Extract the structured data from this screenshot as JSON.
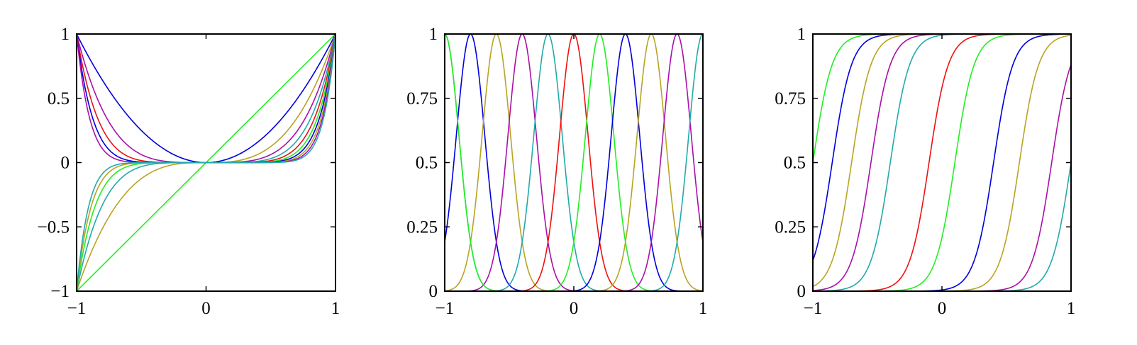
{
  "chart_data": [
    {
      "type": "line",
      "title": "",
      "xlabel": "",
      "ylabel": "",
      "xlim": [
        -1,
        1
      ],
      "ylim": [
        -1,
        1
      ],
      "x_ticks": [
        {
          "value": -1,
          "label": "−1"
        },
        {
          "value": 0,
          "label": "0"
        },
        {
          "value": 1,
          "label": "1"
        }
      ],
      "y_ticks": [
        {
          "value": -1,
          "label": "−1"
        },
        {
          "value": -0.5,
          "label": "−0.5"
        },
        {
          "value": 0,
          "label": "0"
        },
        {
          "value": 0.5,
          "label": "0.5"
        },
        {
          "value": 1,
          "label": "1"
        }
      ],
      "grid": false,
      "series": [
        {
          "family": "power",
          "exponent": 1,
          "color": "#22ee22"
        },
        {
          "family": "power",
          "exponent": 2,
          "color": "#0000dd"
        },
        {
          "family": "power",
          "exponent": 3,
          "color": "#b8a422"
        },
        {
          "family": "power",
          "exponent": 4,
          "color": "#aa10aa"
        },
        {
          "family": "power",
          "exponent": 5,
          "color": "#22aaaa"
        },
        {
          "family": "power",
          "exponent": 6,
          "color": "#ee1111"
        },
        {
          "family": "power",
          "exponent": 7,
          "color": "#22ee22"
        },
        {
          "family": "power",
          "exponent": 8,
          "color": "#0000dd"
        },
        {
          "family": "power",
          "exponent": 9,
          "color": "#b8a422"
        },
        {
          "family": "power",
          "exponent": 10,
          "color": "#aa10aa"
        },
        {
          "family": "power",
          "exponent": 11,
          "color": "#22aaaa"
        }
      ]
    },
    {
      "type": "line",
      "title": "",
      "xlabel": "",
      "ylabel": "",
      "xlim": [
        -1,
        1
      ],
      "ylim": [
        0,
        1
      ],
      "x_ticks": [
        {
          "value": -1,
          "label": "−1"
        },
        {
          "value": 0,
          "label": "0"
        },
        {
          "value": 1,
          "label": "1"
        }
      ],
      "y_ticks": [
        {
          "value": 0,
          "label": "0"
        },
        {
          "value": 0.25,
          "label": "0.25"
        },
        {
          "value": 0.5,
          "label": "0.5"
        },
        {
          "value": 0.75,
          "label": "0.75"
        },
        {
          "value": 1,
          "label": "1"
        }
      ],
      "grid": false,
      "series": [
        {
          "family": "gaussian",
          "center": -1.0,
          "width": 0.11,
          "color": "#22aaaa"
        },
        {
          "family": "gaussian",
          "center": -0.8,
          "width": 0.11,
          "color": "#0000dd"
        },
        {
          "family": "gaussian",
          "center": -0.6,
          "width": 0.11,
          "color": "#b8a422"
        },
        {
          "family": "gaussian",
          "center": -0.4,
          "width": 0.11,
          "color": "#aa10aa"
        },
        {
          "family": "gaussian",
          "center": -0.2,
          "width": 0.11,
          "color": "#22aaaa"
        },
        {
          "family": "gaussian",
          "center": 0.0,
          "width": 0.11,
          "color": "#ee1111"
        },
        {
          "family": "gaussian",
          "center": 0.2,
          "width": 0.11,
          "color": "#22ee22"
        },
        {
          "family": "gaussian",
          "center": 0.4,
          "width": 0.11,
          "color": "#0000dd"
        },
        {
          "family": "gaussian",
          "center": 0.6,
          "width": 0.11,
          "color": "#b8a422"
        },
        {
          "family": "gaussian",
          "center": 0.8,
          "width": 0.11,
          "color": "#aa10aa"
        },
        {
          "family": "gaussian",
          "center": 1.0,
          "width": 0.11,
          "color": "#22aaaa"
        },
        {
          "family": "gaussian",
          "center": -1.0,
          "width": 0.11,
          "color": "#22ee22"
        }
      ]
    },
    {
      "type": "line",
      "title": "",
      "xlabel": "",
      "ylabel": "",
      "xlim": [
        -1,
        1
      ],
      "ylim": [
        0,
        1
      ],
      "x_ticks": [
        {
          "value": -1,
          "label": "−1"
        },
        {
          "value": 0,
          "label": "0"
        },
        {
          "value": 1,
          "label": "1"
        }
      ],
      "y_ticks": [
        {
          "value": 0,
          "label": "0"
        },
        {
          "value": 0.25,
          "label": "0.25"
        },
        {
          "value": 0.5,
          "label": "0.5"
        },
        {
          "value": 0.75,
          "label": "0.75"
        },
        {
          "value": 1,
          "label": "1"
        }
      ],
      "grid": false,
      "series": [
        {
          "family": "sigmoid",
          "center": -1.0,
          "slope": 0.075,
          "color": "#22ee22"
        },
        {
          "family": "sigmoid",
          "center": -0.85,
          "slope": 0.075,
          "color": "#0000dd"
        },
        {
          "family": "sigmoid",
          "center": -0.7,
          "slope": 0.075,
          "color": "#b8a422"
        },
        {
          "family": "sigmoid",
          "center": -0.55,
          "slope": 0.075,
          "color": "#aa10aa"
        },
        {
          "family": "sigmoid",
          "center": -0.4,
          "slope": 0.075,
          "color": "#22aaaa"
        },
        {
          "family": "sigmoid",
          "center": -0.1,
          "slope": 0.075,
          "color": "#ee1111"
        },
        {
          "family": "sigmoid",
          "center": 0.1,
          "slope": 0.075,
          "color": "#22ee22"
        },
        {
          "family": "sigmoid",
          "center": 0.4,
          "slope": 0.075,
          "color": "#0000dd"
        },
        {
          "family": "sigmoid",
          "center": 0.6,
          "slope": 0.075,
          "color": "#b8a422"
        },
        {
          "family": "sigmoid",
          "center": 0.85,
          "slope": 0.075,
          "color": "#aa10aa"
        },
        {
          "family": "sigmoid",
          "center": 1.0,
          "slope": 0.075,
          "color": "#22aaaa"
        }
      ]
    }
  ]
}
